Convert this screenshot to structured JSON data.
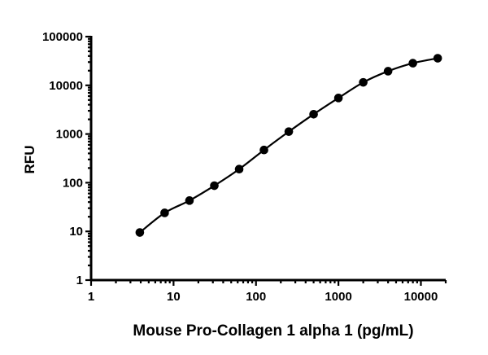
{
  "chart_data": {
    "type": "scatter",
    "title": "",
    "xlabel": "Mouse Pro-Collagen 1 alpha 1 (pg/mL)",
    "ylabel": "RFU",
    "x_scale": "log",
    "y_scale": "log",
    "xlim": [
      1,
      20000
    ],
    "ylim": [
      1,
      100000
    ],
    "x_ticks": [
      1,
      10,
      100,
      1000,
      10000
    ],
    "x_tick_labels": [
      "1",
      "10",
      "100",
      "1000",
      "10000"
    ],
    "y_ticks": [
      1,
      10,
      100,
      1000,
      10000,
      100000
    ],
    "y_tick_labels": [
      "1",
      "10",
      "100",
      "1000",
      "10000",
      "100000"
    ],
    "grid": false,
    "legend": "none",
    "fit_curve": true,
    "series": [
      {
        "x": [
          3.9,
          7.8,
          15.6,
          31.25,
          62.5,
          125,
          250,
          500,
          1000,
          2000,
          4000,
          8000,
          16000
        ],
        "y": [
          9.5,
          24,
          43,
          87,
          190,
          470,
          1120,
          2550,
          5500,
          11500,
          19500,
          28500,
          36000
        ],
        "color": "#000000",
        "marker": "circle"
      }
    ]
  }
}
